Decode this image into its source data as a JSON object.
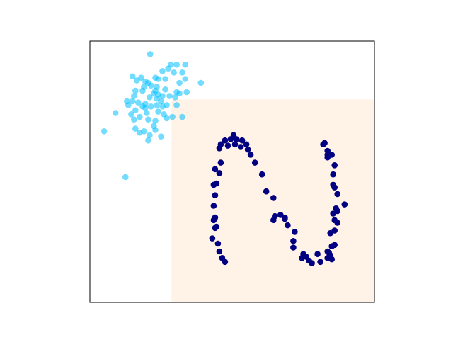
{
  "chart_data": {
    "type": "scatter",
    "title": "",
    "xlabel": "",
    "ylabel": "",
    "xlim": [
      0,
      10
    ],
    "ylim": [
      0,
      10
    ],
    "grid": false,
    "axis_ticks": false,
    "legend": null,
    "colors": {
      "cluster": "#00bfff",
      "s_shape": "#000080",
      "region": "#fff2e6",
      "frame": "#000000"
    },
    "shaded_region": {
      "x": [
        2.87,
        10
      ],
      "y": [
        0,
        7.77
      ]
    },
    "series": [
      {
        "color": "#00bfff",
        "opacity": 0.55,
        "points": [
          [
            2.12,
            9.5
          ],
          [
            2.85,
            9.1
          ],
          [
            3.05,
            9.1
          ],
          [
            3.35,
            9.1
          ],
          [
            2.75,
            8.95
          ],
          [
            2.55,
            8.85
          ],
          [
            2.95,
            8.8
          ],
          [
            3.25,
            8.8
          ],
          [
            1.5,
            8.65
          ],
          [
            1.8,
            8.6
          ],
          [
            2.3,
            8.6
          ],
          [
            2.4,
            8.55
          ],
          [
            2.65,
            8.55
          ],
          [
            3.35,
            8.55
          ],
          [
            1.65,
            8.5
          ],
          [
            1.95,
            8.45
          ],
          [
            2.05,
            8.4
          ],
          [
            3.15,
            8.4
          ],
          [
            3.9,
            8.4
          ],
          [
            1.9,
            8.25
          ],
          [
            2.15,
            8.3
          ],
          [
            2.35,
            8.25
          ],
          [
            1.6,
            8.1
          ],
          [
            1.85,
            8.1
          ],
          [
            2.3,
            8.1
          ],
          [
            2.65,
            8.15
          ],
          [
            3.05,
            8.05
          ],
          [
            3.15,
            8.0
          ],
          [
            3.4,
            8.05
          ],
          [
            1.55,
            7.9
          ],
          [
            2.25,
            8.0
          ],
          [
            2.4,
            7.95
          ],
          [
            2.55,
            7.9
          ],
          [
            2.8,
            7.9
          ],
          [
            3.0,
            7.85
          ],
          [
            2.1,
            7.85
          ],
          [
            2.35,
            7.8
          ],
          [
            1.3,
            7.7
          ],
          [
            1.5,
            7.7
          ],
          [
            1.7,
            7.65
          ],
          [
            1.95,
            7.6
          ],
          [
            2.5,
            7.7
          ],
          [
            2.7,
            7.55
          ],
          [
            3.05,
            7.55
          ],
          [
            1.35,
            7.55
          ],
          [
            1.85,
            7.5
          ],
          [
            2.15,
            7.5
          ],
          [
            2.35,
            7.55
          ],
          [
            2.55,
            7.5
          ],
          [
            1.95,
            7.45
          ],
          [
            1.6,
            7.35
          ],
          [
            0.9,
            7.25
          ],
          [
            1.45,
            7.2
          ],
          [
            2.0,
            7.25
          ],
          [
            2.4,
            7.3
          ],
          [
            2.6,
            7.2
          ],
          [
            1.75,
            7.1
          ],
          [
            2.05,
            7.0
          ],
          [
            2.7,
            7.05
          ],
          [
            2.9,
            7.1
          ],
          [
            3.25,
            7.1
          ],
          [
            1.55,
            7.0
          ],
          [
            2.3,
            6.95
          ],
          [
            2.25,
            6.75
          ],
          [
            1.6,
            6.65
          ],
          [
            1.9,
            6.55
          ],
          [
            2.1,
            6.4
          ],
          [
            2.3,
            6.6
          ],
          [
            1.75,
            6.5
          ],
          [
            0.5,
            6.55
          ],
          [
            2.5,
            6.35
          ],
          [
            2.05,
            6.2
          ],
          [
            1.25,
            4.8
          ]
        ]
      },
      {
        "color": "#000080",
        "opacity": 1.0,
        "points": [
          [
            5.05,
            6.4
          ],
          [
            5.15,
            6.25
          ],
          [
            4.95,
            6.25
          ],
          [
            4.75,
            6.2
          ],
          [
            5.35,
            6.2
          ],
          [
            5.1,
            6.05
          ],
          [
            5.5,
            6.05
          ],
          [
            4.6,
            6.05
          ],
          [
            4.85,
            6.0
          ],
          [
            5.3,
            5.95
          ],
          [
            4.55,
            5.9
          ],
          [
            5.55,
            5.85
          ],
          [
            5.65,
            5.65
          ],
          [
            4.6,
            5.35
          ],
          [
            5.8,
            5.35
          ],
          [
            4.4,
            5.1
          ],
          [
            4.55,
            4.95
          ],
          [
            6.05,
            4.9
          ],
          [
            4.45,
            4.55
          ],
          [
            4.35,
            4.5
          ],
          [
            6.2,
            4.25
          ],
          [
            4.4,
            4.1
          ],
          [
            6.45,
            4.0
          ],
          [
            4.35,
            3.7
          ],
          [
            4.4,
            3.25
          ],
          [
            6.7,
            3.35
          ],
          [
            6.5,
            3.3
          ],
          [
            6.85,
            3.25
          ],
          [
            6.85,
            3.2
          ],
          [
            4.35,
            3.15
          ],
          [
            6.45,
            3.15
          ],
          [
            4.45,
            2.9
          ],
          [
            4.4,
            2.85
          ],
          [
            6.95,
            2.95
          ],
          [
            7.2,
            2.7
          ],
          [
            4.3,
            2.45
          ],
          [
            7.15,
            2.35
          ],
          [
            4.5,
            2.25
          ],
          [
            7.15,
            2.1
          ],
          [
            4.55,
            1.95
          ],
          [
            7.5,
            1.85
          ],
          [
            8.0,
            1.85
          ],
          [
            4.65,
            1.7
          ],
          [
            7.45,
            1.7
          ],
          [
            7.6,
            1.75
          ],
          [
            8.4,
            1.9
          ],
          [
            4.75,
            1.55
          ],
          [
            7.7,
            1.6
          ],
          [
            8.1,
            1.55
          ],
          [
            7.8,
            1.5
          ],
          [
            8.35,
            1.7
          ],
          [
            8.5,
            1.65
          ],
          [
            8.35,
            1.95
          ],
          [
            8.45,
            1.8
          ],
          [
            8.5,
            2.15
          ],
          [
            8.6,
            2.2
          ],
          [
            8.45,
            2.65
          ],
          [
            8.6,
            2.75
          ],
          [
            8.7,
            3.05
          ],
          [
            8.6,
            3.15
          ],
          [
            8.55,
            3.4
          ],
          [
            8.7,
            3.5
          ],
          [
            8.65,
            3.6
          ],
          [
            8.95,
            3.75
          ],
          [
            8.7,
            4.15
          ],
          [
            8.55,
            4.5
          ],
          [
            8.6,
            4.4
          ],
          [
            8.55,
            4.9
          ],
          [
            8.6,
            5.25
          ],
          [
            8.5,
            5.65
          ],
          [
            8.35,
            5.65
          ],
          [
            8.35,
            5.55
          ],
          [
            8.35,
            5.8
          ],
          [
            8.2,
            6.05
          ],
          [
            8.25,
            6.1
          ]
        ]
      }
    ]
  }
}
